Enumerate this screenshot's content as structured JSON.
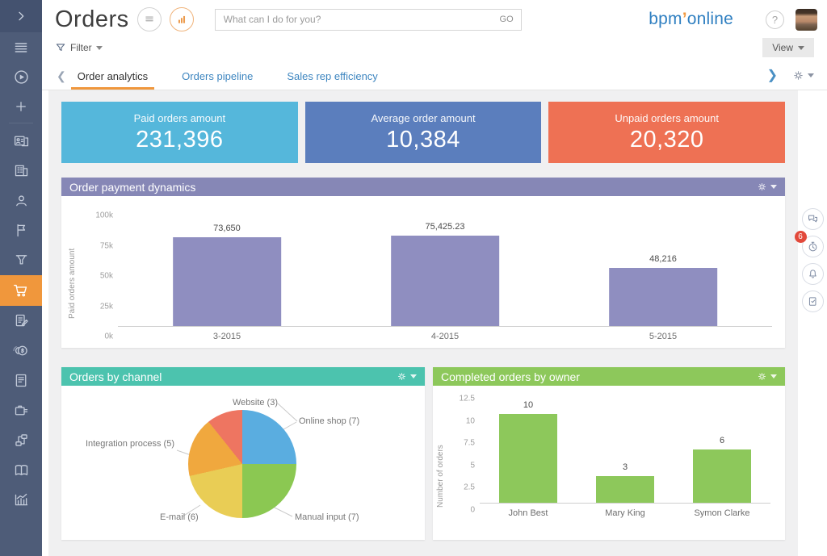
{
  "app": {
    "title": "Orders",
    "search_placeholder": "What can I do for you?",
    "search_value": "",
    "go_label": "GO",
    "logo": {
      "prefix": "bpm",
      "apostrophe": "’",
      "suffix": "online"
    },
    "accent_color": "#f0973c",
    "help_label": "?"
  },
  "toolbar": {
    "filter_label": "Filter",
    "view_label": "View"
  },
  "tabs": {
    "items": [
      {
        "label": "Order analytics",
        "active": true
      },
      {
        "label": "Orders pipeline",
        "active": false
      },
      {
        "label": "Sales rep efficiency",
        "active": false
      }
    ]
  },
  "kpis": [
    {
      "label": "Paid orders amount",
      "value": "231,396",
      "color": "#55b7db"
    },
    {
      "label": "Average order amount",
      "value": "10,384",
      "color": "#5b7ebd"
    },
    {
      "label": "Unpaid orders amount",
      "value": "20,320",
      "color": "#ee7154"
    }
  ],
  "chart_data": [
    {
      "type": "bar",
      "title": "Order payment dynamics",
      "header_color": "#8687b6",
      "bar_color": "#8f8ec0",
      "categories": [
        "3-2015",
        "4-2015",
        "5-2015"
      ],
      "values": [
        73650,
        75425.23,
        48216
      ],
      "value_labels": [
        "73,650",
        "75,425.23",
        "48,216"
      ],
      "xlabel": "",
      "ylabel": "Paid orders amount",
      "ylim": [
        0,
        100000
      ],
      "yticks": [
        "100k",
        "75k",
        "50k",
        "25k",
        "0k"
      ],
      "grid": false,
      "legend": false
    },
    {
      "type": "pie",
      "title": "Orders by channel",
      "header_color": "#4cc3ae",
      "slices": [
        {
          "label": "Online shop (7)",
          "value": 7,
          "color": "#5aade0"
        },
        {
          "label": "Manual input (7)",
          "value": 7,
          "color": "#8bc852"
        },
        {
          "label": "E-mail (6)",
          "value": 6,
          "color": "#e9cd55"
        },
        {
          "label": "Integration process (5)",
          "value": 5,
          "color": "#f0a83e"
        },
        {
          "label": "Website (3)",
          "value": 3,
          "color": "#ee7561"
        }
      ],
      "legend": false
    },
    {
      "type": "bar",
      "title": "Completed orders by owner",
      "header_color": "#8dc85b",
      "bar_color": "#8dc85b",
      "categories": [
        "John Best",
        "Mary King",
        "Symon Clarke"
      ],
      "values": [
        10,
        3,
        6
      ],
      "value_labels": [
        "10",
        "3",
        "6"
      ],
      "xlabel": "",
      "ylabel": "Number of orders",
      "ylim": [
        0,
        12.5
      ],
      "yticks": [
        "12.5",
        "10",
        "7.5",
        "5",
        "2.5",
        "0"
      ],
      "grid": false,
      "legend": false
    }
  ],
  "right_rail": {
    "badge_count": "6",
    "icons": [
      "chat-icon",
      "stopwatch-icon",
      "bell-icon",
      "clipboard-check-icon"
    ]
  },
  "sidebar": {
    "bg_color": "#4e5c78",
    "active_color": "#f0973c",
    "active_icon": "cart-icon",
    "icons": [
      "collapse-chevron-icon",
      "menu-icon",
      "play-circle-icon",
      "plus-icon",
      "id-card-icon",
      "company-icon",
      "contact-icon",
      "flag-icon",
      "funnel-icon",
      "cart-icon",
      "contract-icon",
      "coins-icon",
      "document-icon",
      "briefcase-icon",
      "flow-icon",
      "book-icon",
      "bar-chart-icon"
    ]
  }
}
